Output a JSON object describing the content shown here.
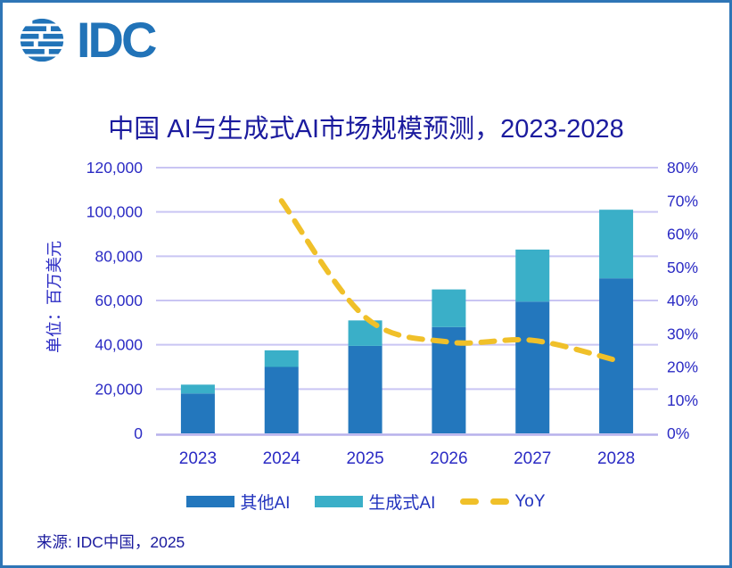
{
  "logo": {
    "brand": "IDC"
  },
  "title": "中国 AI与生成式AI市场规模预测，2023-2028",
  "source": "来源: IDC中国，2025",
  "chart_data": {
    "type": "bar",
    "subtype": "stacked-bars-with-yoy-line-dual-axis",
    "title": "中国 AI与生成式AI市场规模预测，2023-2028",
    "categories": [
      "2023",
      "2024",
      "2025",
      "2026",
      "2027",
      "2028"
    ],
    "series": [
      {
        "name": "其他AI",
        "type": "bar",
        "color": "#2377BD",
        "axis": "left",
        "values": [
          18000,
          30000,
          39500,
          48000,
          59500,
          70000
        ]
      },
      {
        "name": "生成式AI",
        "type": "bar",
        "color": "#3AAFC8",
        "axis": "left",
        "values": [
          4000,
          7500,
          11500,
          17000,
          23500,
          31000
        ]
      },
      {
        "name": "YoY",
        "type": "line",
        "color": "#F0C029",
        "axis": "right",
        "dashed": true,
        "unit": "%",
        "values": [
          null,
          70,
          35,
          27.5,
          28,
          22
        ]
      }
    ],
    "stacked_totals": [
      22000,
      37500,
      51000,
      65000,
      83000,
      101000
    ],
    "ylabel_left": "单位：百万美元",
    "y_left": {
      "min": 0,
      "max": 120000,
      "step": 20000,
      "tick_labels": [
        "0",
        "20,000",
        "40,000",
        "60,000",
        "80,000",
        "100,000",
        "120,000"
      ]
    },
    "y_right": {
      "min": 0,
      "max": 80,
      "step": 10,
      "tick_labels": [
        "0%",
        "10%",
        "20%",
        "30%",
        "40%",
        "50%",
        "60%",
        "70%",
        "80%"
      ]
    },
    "grid": "horizontal",
    "legend_position": "bottom"
  },
  "colors": {
    "frame_border": "#2E75B6",
    "logo_blue": "#2173B8",
    "title_text": "#1B1B9E",
    "axis_text": "#2B2BC4",
    "gridline": "#C9C5F3",
    "axis_line": "#B7B1EC",
    "bar_other_ai": "#2377BD",
    "bar_gen_ai": "#3AAFC8",
    "yoy_line": "#F0C029"
  }
}
